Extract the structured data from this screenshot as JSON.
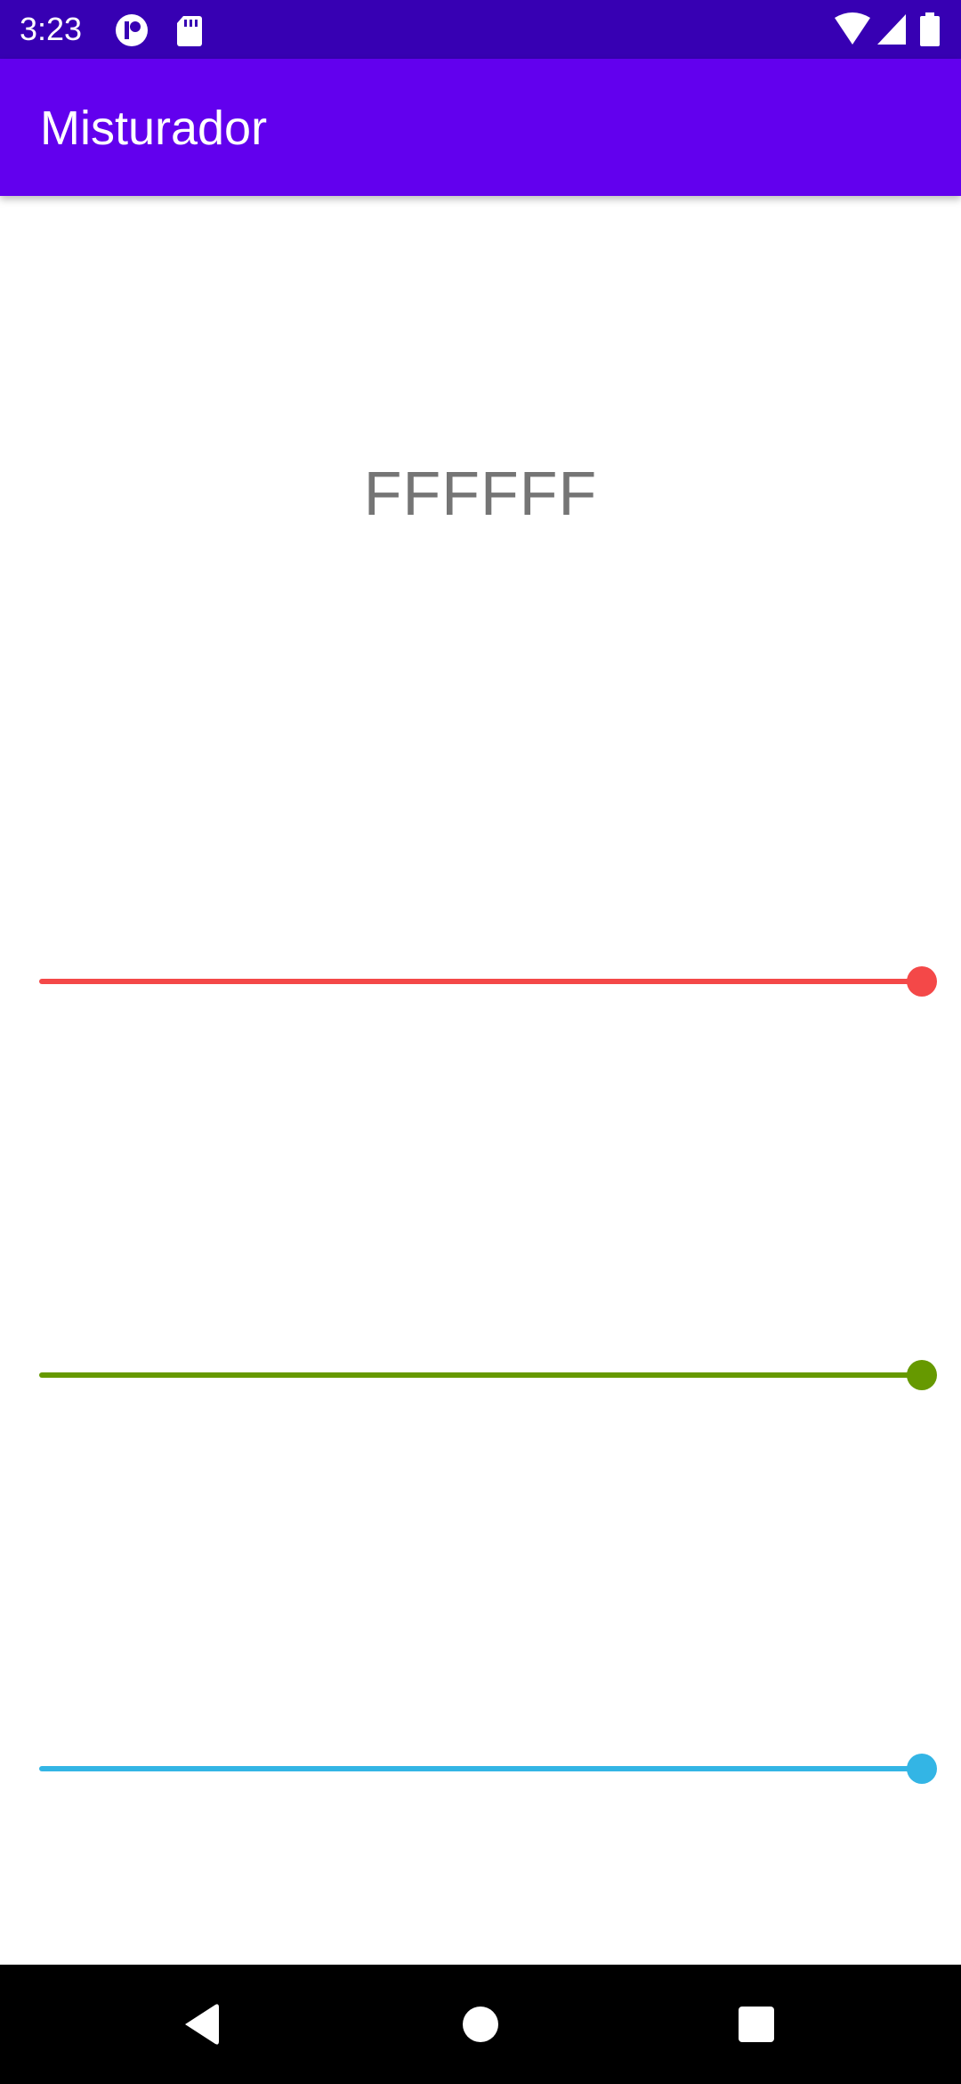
{
  "status_bar": {
    "time": "3:23",
    "background_color": "#3700b3",
    "left_icons": [
      "circle-badge-icon",
      "sd-card-icon"
    ],
    "right_icons": [
      "wifi-icon",
      "cell-signal-icon",
      "battery-icon"
    ]
  },
  "app_bar": {
    "title": "Misturador",
    "background_color": "#6200ee"
  },
  "color_display": {
    "hex": "FFFFFF"
  },
  "sliders": [
    {
      "name": "red",
      "color": "#f44848",
      "value_fraction": 1.0
    },
    {
      "name": "green",
      "color": "#669900",
      "value_fraction": 1.0
    },
    {
      "name": "blue",
      "color": "#33b5e5",
      "value_fraction": 1.0
    }
  ],
  "nav_bar": {
    "buttons": [
      "back-icon",
      "home-icon",
      "recents-icon"
    ]
  }
}
